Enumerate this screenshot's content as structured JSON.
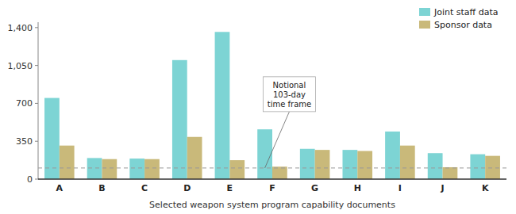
{
  "chart_data": {
    "type": "bar",
    "categories": [
      "A",
      "B",
      "C",
      "D",
      "E",
      "F",
      "G",
      "H",
      "I",
      "J",
      "K"
    ],
    "series": [
      {
        "name": "Joint staff data",
        "color": "#7dd4d4",
        "values": [
          750,
          195,
          190,
          1100,
          1360,
          460,
          280,
          270,
          440,
          240,
          230
        ]
      },
      {
        "name": "Sponsor data",
        "color": "#c9b97a",
        "values": [
          310,
          185,
          185,
          390,
          175,
          115,
          270,
          260,
          310,
          110,
          215
        ]
      }
    ],
    "x_label": "Selected weapon system program capability documents",
    "ylim": [
      0,
      1450
    ],
    "yticks": [
      0,
      350,
      700,
      {
        "value": 1050,
        "label": "1,050"
      },
      {
        "value": 1400,
        "label": "1,400"
      }
    ],
    "annotations": [
      {
        "text": "Notional\n103-day\ntime frame",
        "y": 103,
        "category": "F",
        "color": "#999999"
      }
    ],
    "legend": "upper right",
    "grid": false
  }
}
